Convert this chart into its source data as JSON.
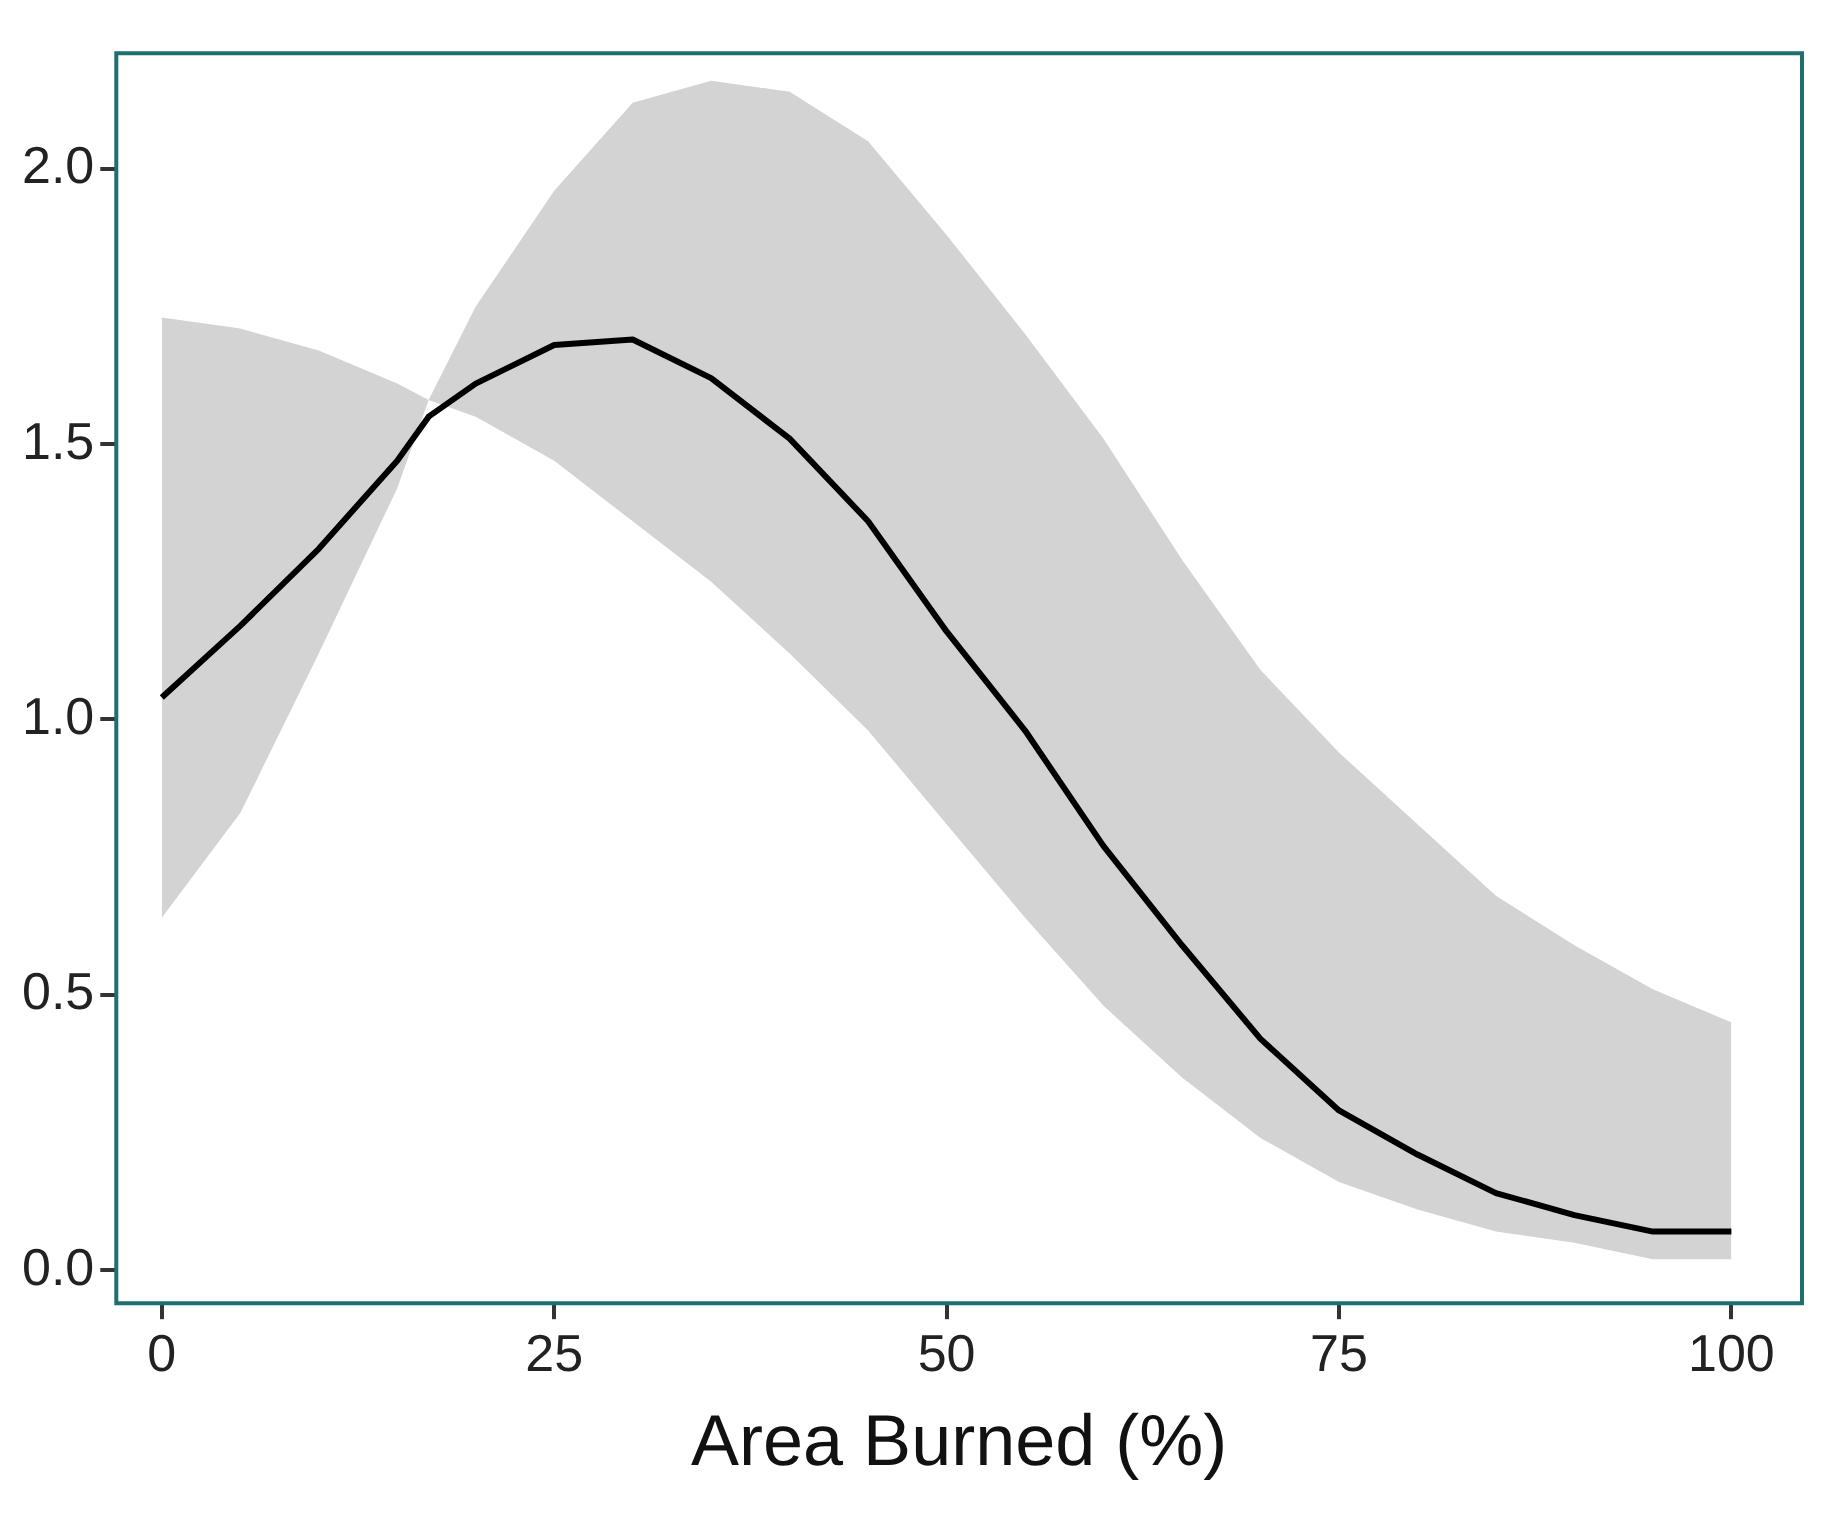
{
  "chart_data": {
    "type": "line",
    "xlabel": "Area Burned (%)",
    "xlim": [
      -2.9,
      104.5
    ],
    "ylim": [
      -0.06,
      2.21
    ],
    "xticks": [
      0,
      25,
      50,
      75,
      100
    ],
    "yticks": [
      {
        "value": 0,
        "label": "0.0"
      },
      {
        "value": 0.5,
        "label": "0.5"
      },
      {
        "value": 1,
        "label": "1.0"
      },
      {
        "value": 1.5,
        "label": "1.5"
      },
      {
        "value": 2,
        "label": "2.0"
      }
    ],
    "grid": false,
    "legend": false,
    "marker": "none",
    "line_style": "solid",
    "x": [
      0,
      5,
      10,
      15,
      17,
      20,
      25,
      30,
      35,
      40,
      45,
      50,
      55,
      60,
      65,
      70,
      75,
      80,
      85,
      90,
      95,
      100
    ],
    "series": [
      {
        "color": "#000000",
        "values": [
          1.04,
          1.17,
          1.31,
          1.47,
          1.55,
          1.61,
          1.68,
          1.69,
          1.62,
          1.51,
          1.36,
          1.16,
          0.98,
          0.77,
          0.59,
          0.42,
          0.29,
          0.21,
          0.14,
          0.1,
          0.07,
          0.07
        ],
        "lower": [
          0.64,
          0.83,
          1.12,
          1.42,
          1.58,
          1.55,
          1.47,
          1.36,
          1.25,
          1.12,
          0.98,
          0.81,
          0.64,
          0.48,
          0.35,
          0.24,
          0.16,
          0.11,
          0.07,
          0.05,
          0.02,
          0.02
        ],
        "upper": [
          1.73,
          1.71,
          1.67,
          1.61,
          1.58,
          1.75,
          1.96,
          2.12,
          2.16,
          2.14,
          2.05,
          1.88,
          1.7,
          1.51,
          1.29,
          1.09,
          0.94,
          0.81,
          0.68,
          0.59,
          0.51,
          0.45
        ]
      }
    ]
  }
}
